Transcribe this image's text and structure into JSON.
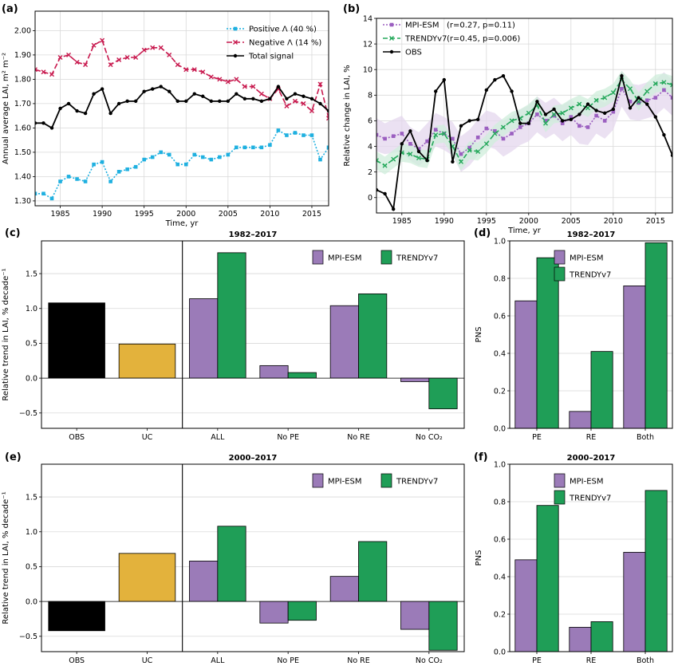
{
  "chart_data": [
    {
      "id": "a",
      "panel_label": "(a)",
      "type": "line",
      "xlabel": "Time, yr",
      "ylabel": "Annual average LAI, m² m⁻²",
      "xlim": [
        1982,
        2017
      ],
      "ylim": [
        1.28,
        2.08
      ],
      "xticks": [
        1985,
        1990,
        1995,
        2000,
        2005,
        2010,
        2015
      ],
      "xtick_labels": [
        "1985",
        "1990",
        "1995",
        "2000",
        "2005",
        "2010",
        "2015"
      ],
      "yticks": [
        1.3,
        1.4,
        1.5,
        1.6,
        1.7,
        1.8,
        1.9,
        2.0
      ],
      "ytick_labels": [
        "1.30",
        "1.40",
        "1.50",
        "1.60",
        "1.70",
        "1.80",
        "1.90",
        "2.00"
      ],
      "grid": true,
      "legend": "top-right",
      "x": [
        1982,
        1983,
        1984,
        1985,
        1986,
        1987,
        1988,
        1989,
        1990,
        1991,
        1992,
        1993,
        1994,
        1995,
        1996,
        1997,
        1998,
        1999,
        2000,
        2001,
        2002,
        2003,
        2004,
        2005,
        2006,
        2007,
        2008,
        2009,
        2010,
        2011,
        2012,
        2013,
        2014,
        2015,
        2016,
        2017
      ],
      "series": [
        {
          "name": "Positive Λ (40 %)",
          "color": "#1fb0e0",
          "dash": "2,2",
          "marker": "square",
          "values": [
            1.33,
            1.33,
            1.31,
            1.38,
            1.4,
            1.39,
            1.38,
            1.45,
            1.46,
            1.38,
            1.42,
            1.43,
            1.44,
            1.47,
            1.48,
            1.5,
            1.49,
            1.45,
            1.45,
            1.49,
            1.48,
            1.47,
            1.48,
            1.49,
            1.52,
            1.52,
            1.52,
            1.52,
            1.53,
            1.59,
            1.57,
            1.58,
            1.57,
            1.57,
            1.47,
            1.52
          ]
        },
        {
          "name": "Negative Λ (14 %)",
          "color": "#c8194e",
          "dash": "7,3",
          "marker": "x",
          "values": [
            1.84,
            1.83,
            1.82,
            1.89,
            1.9,
            1.87,
            1.86,
            1.94,
            1.96,
            1.86,
            1.88,
            1.89,
            1.89,
            1.92,
            1.93,
            1.93,
            1.9,
            1.86,
            1.84,
            1.84,
            1.83,
            1.81,
            1.8,
            1.79,
            1.8,
            1.77,
            1.77,
            1.74,
            1.72,
            1.76,
            1.69,
            1.71,
            1.7,
            1.67,
            1.78,
            1.64
          ]
        },
        {
          "name": "Total signal",
          "color": "#000000",
          "dash": "",
          "marker": "circle",
          "values": [
            1.62,
            1.62,
            1.6,
            1.68,
            1.7,
            1.67,
            1.66,
            1.74,
            1.76,
            1.66,
            1.7,
            1.71,
            1.71,
            1.75,
            1.76,
            1.77,
            1.75,
            1.71,
            1.71,
            1.74,
            1.73,
            1.71,
            1.71,
            1.71,
            1.74,
            1.72,
            1.72,
            1.71,
            1.72,
            1.77,
            1.72,
            1.74,
            1.73,
            1.72,
            1.7,
            1.67
          ]
        }
      ]
    },
    {
      "id": "b",
      "panel_label": "(b)",
      "type": "line",
      "xlabel": "Time, yr",
      "ylabel": "Relative change in LAI, %",
      "xlim": [
        1982,
        2017
      ],
      "ylim": [
        -1.2,
        14
      ],
      "xticks": [
        1985,
        1990,
        1995,
        2000,
        2005,
        2010,
        2015
      ],
      "xtick_labels": [
        "1985",
        "1990",
        "1995",
        "2000",
        "2005",
        "2010",
        "2015"
      ],
      "yticks": [
        0,
        2,
        4,
        6,
        8,
        10,
        12,
        14
      ],
      "ytick_labels": [
        "0",
        "2",
        "4",
        "6",
        "8",
        "10",
        "12",
        "14"
      ],
      "grid": true,
      "legend": "top-left",
      "x": [
        1982,
        1983,
        1984,
        1985,
        1986,
        1987,
        1988,
        1989,
        1990,
        1991,
        1992,
        1993,
        1994,
        1995,
        1996,
        1997,
        1998,
        1999,
        2000,
        2001,
        2002,
        2003,
        2004,
        2005,
        2006,
        2007,
        2008,
        2009,
        2010,
        2011,
        2012,
        2013,
        2014,
        2015,
        2016,
        2017
      ],
      "series": [
        {
          "name": "MPI-ESM",
          "stats": "(r=0.27, p=0.11)",
          "color": "#9b5fc0",
          "band": "#e4d7ee",
          "dash": "2,2",
          "marker": "square",
          "values": [
            4.9,
            4.6,
            4.8,
            5.0,
            4.2,
            3.8,
            4.4,
            5.3,
            5.0,
            4.6,
            3.4,
            3.9,
            4.7,
            5.4,
            5.2,
            4.6,
            5.0,
            5.5,
            5.8,
            6.5,
            6.0,
            6.4,
            5.8,
            6.3,
            5.6,
            5.5,
            6.4,
            6.0,
            6.7,
            8.5,
            7.5,
            7.4,
            7.6,
            7.8,
            8.4,
            7.8
          ],
          "band_low": [
            3.6,
            3.4,
            3.5,
            3.6,
            2.9,
            2.5,
            3.0,
            4.0,
            3.7,
            3.3,
            2.0,
            2.5,
            3.3,
            4.0,
            3.8,
            3.2,
            3.6,
            4.1,
            4.4,
            5.1,
            4.6,
            5.0,
            4.4,
            4.9,
            4.2,
            4.1,
            5.0,
            4.6,
            5.3,
            7.1,
            6.1,
            6.0,
            6.2,
            6.4,
            7.0,
            6.4
          ],
          "band_high": [
            6.2,
            5.8,
            6.1,
            6.4,
            5.5,
            5.1,
            5.8,
            6.6,
            6.3,
            5.9,
            4.8,
            5.3,
            6.1,
            6.8,
            6.6,
            6.0,
            6.4,
            6.9,
            7.2,
            7.9,
            7.4,
            7.8,
            7.2,
            7.7,
            7.0,
            6.9,
            7.8,
            7.4,
            8.1,
            9.9,
            8.9,
            8.8,
            9.0,
            9.2,
            9.8,
            9.2
          ]
        },
        {
          "name": "TRENDYv7",
          "stats": "(r=0.45, p=0.006)",
          "color": "#26a95c",
          "band": "#cfeedb",
          "dash": "6,3",
          "marker": "x",
          "values": [
            2.9,
            2.5,
            3.0,
            3.5,
            3.4,
            3.1,
            3.0,
            4.9,
            5.0,
            4.0,
            2.8,
            3.7,
            3.6,
            4.2,
            5.0,
            5.5,
            6.0,
            6.2,
            6.6,
            7.2,
            5.8,
            6.5,
            6.6,
            7.0,
            7.3,
            7.0,
            7.6,
            7.8,
            8.2,
            9.2,
            8.5,
            7.5,
            8.3,
            8.9,
            9.0,
            8.8
          ],
          "band_low": [
            2.2,
            1.8,
            2.3,
            2.8,
            2.7,
            2.4,
            2.3,
            4.2,
            4.3,
            3.3,
            2.1,
            3.0,
            2.9,
            3.5,
            4.3,
            4.8,
            5.3,
            5.5,
            5.9,
            6.5,
            5.1,
            5.8,
            5.9,
            6.3,
            6.6,
            6.3,
            6.9,
            7.1,
            7.5,
            8.5,
            7.8,
            6.8,
            7.6,
            8.2,
            8.3,
            8.1
          ],
          "band_high": [
            3.6,
            3.2,
            3.7,
            4.2,
            4.1,
            3.8,
            3.7,
            5.6,
            5.7,
            4.7,
            3.5,
            4.4,
            4.3,
            4.9,
            5.7,
            6.2,
            6.7,
            6.9,
            7.3,
            7.9,
            6.5,
            7.2,
            7.3,
            7.7,
            8.0,
            7.7,
            8.3,
            8.5,
            8.9,
            9.9,
            9.2,
            8.2,
            9.0,
            9.6,
            9.7,
            9.5
          ]
        },
        {
          "name": "OBS",
          "stats": "",
          "color": "#000000",
          "dash": "",
          "marker": "circle",
          "values": [
            0.6,
            0.3,
            -0.9,
            4.2,
            5.2,
            3.6,
            2.9,
            8.3,
            9.2,
            2.8,
            5.6,
            6.0,
            6.1,
            8.4,
            9.2,
            9.5,
            8.3,
            5.8,
            5.8,
            7.5,
            6.5,
            6.9,
            6.0,
            6.1,
            6.5,
            7.3,
            6.8,
            6.6,
            6.9,
            9.5,
            7.0,
            7.8,
            7.3,
            6.3,
            4.9,
            3.3
          ]
        }
      ]
    },
    {
      "id": "c",
      "panel_label": "(c)",
      "type": "bar",
      "title": "1982–2017",
      "ylabel": "Relative trend in LAI, % decade⁻¹",
      "ylim": [
        -0.72,
        1.97
      ],
      "yticks": [
        -0.5,
        0.0,
        0.5,
        1.0,
        1.5
      ],
      "ytick_labels": [
        "−0.5",
        "0.0",
        "0.5",
        "1.0",
        "1.5"
      ],
      "grid": true,
      "legend": "top-right",
      "legend_items": [
        {
          "name": "MPI-ESM",
          "color": "#9b7bb8"
        },
        {
          "name": "TRENDYv7",
          "color": "#1f9e57"
        }
      ],
      "single_bars": [
        {
          "category": "OBS",
          "value": 1.08,
          "color": "#000000"
        },
        {
          "category": "UC",
          "value": 0.49,
          "color": "#e3b23c"
        }
      ],
      "categories": [
        "ALL",
        "No PE",
        "No RE",
        "No CO₂"
      ],
      "series": [
        {
          "name": "MPI-ESM",
          "color": "#9b7bb8",
          "values": [
            1.14,
            0.18,
            1.04,
            -0.05
          ]
        },
        {
          "name": "TRENDYv7",
          "color": "#1f9e57",
          "values": [
            1.8,
            0.08,
            1.21,
            -0.44
          ]
        }
      ]
    },
    {
      "id": "d",
      "panel_label": "(d)",
      "type": "bar",
      "title": "1982–2017",
      "ylabel": "PNS",
      "ylim": [
        0,
        1.0
      ],
      "yticks": [
        0,
        0.2,
        0.4,
        0.6,
        0.8,
        1.0
      ],
      "ytick_labels": [
        "0.0",
        "0.2",
        "0.4",
        "0.6",
        "0.8",
        "1.0"
      ],
      "grid": true,
      "legend": "top-left",
      "categories": [
        "PE",
        "RE",
        "Both"
      ],
      "series": [
        {
          "name": "MPI-ESM",
          "color": "#9b7bb8",
          "values": [
            0.68,
            0.09,
            0.76
          ]
        },
        {
          "name": "TRENDYv7",
          "color": "#1f9e57",
          "values": [
            0.91,
            0.41,
            0.99
          ]
        }
      ]
    },
    {
      "id": "e",
      "panel_label": "(e)",
      "type": "bar",
      "title": "2000–2017",
      "ylabel": "Relative trend in LAI, % decade⁻¹",
      "ylim": [
        -0.72,
        1.97
      ],
      "yticks": [
        -0.5,
        0.0,
        0.5,
        1.0,
        1.5
      ],
      "ytick_labels": [
        "−0.5",
        "0.0",
        "0.5",
        "1.0",
        "1.5"
      ],
      "grid": true,
      "legend": "top-right",
      "legend_items": [
        {
          "name": "MPI-ESM",
          "color": "#9b7bb8"
        },
        {
          "name": "TRENDYv7",
          "color": "#1f9e57"
        }
      ],
      "single_bars": [
        {
          "category": "OBS",
          "value": -0.42,
          "color": "#000000"
        },
        {
          "category": "UC",
          "value": 0.69,
          "color": "#e3b23c"
        }
      ],
      "categories": [
        "ALL",
        "No PE",
        "No RE",
        "No CO₂"
      ],
      "series": [
        {
          "name": "MPI-ESM",
          "color": "#9b7bb8",
          "values": [
            0.58,
            -0.31,
            0.36,
            -0.4
          ]
        },
        {
          "name": "TRENDYv7",
          "color": "#1f9e57",
          "values": [
            1.08,
            -0.27,
            0.86,
            -0.7
          ]
        }
      ]
    },
    {
      "id": "f",
      "panel_label": "(f)",
      "type": "bar",
      "title": "2000–2017",
      "ylabel": "PNS",
      "ylim": [
        0,
        1.0
      ],
      "yticks": [
        0,
        0.2,
        0.4,
        0.6,
        0.8,
        1.0
      ],
      "ytick_labels": [
        "0.0",
        "0.2",
        "0.4",
        "0.6",
        "0.8",
        "1.0"
      ],
      "grid": true,
      "legend": "top-left",
      "categories": [
        "PE",
        "RE",
        "Both"
      ],
      "series": [
        {
          "name": "MPI-ESM",
          "color": "#9b7bb8",
          "values": [
            0.49,
            0.13,
            0.53
          ]
        },
        {
          "name": "TRENDYv7",
          "color": "#1f9e57",
          "values": [
            0.78,
            0.16,
            0.86
          ]
        }
      ]
    }
  ]
}
